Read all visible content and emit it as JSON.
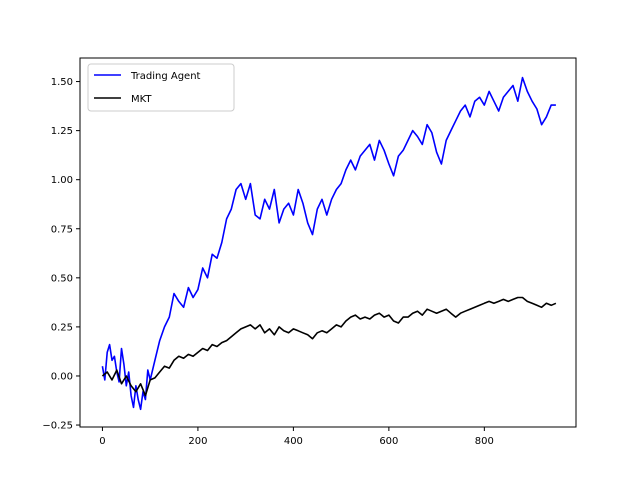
{
  "chart_data": {
    "type": "line",
    "title": "",
    "xlabel": "",
    "ylabel": "",
    "xlim": [
      -47,
      992
    ],
    "ylim": [
      -0.26,
      1.62
    ],
    "xticks": [
      0,
      200,
      400,
      600,
      800
    ],
    "yticks": [
      -0.25,
      0.0,
      0.25,
      0.5,
      0.75,
      1.0,
      1.25,
      1.5
    ],
    "xtick_labels": [
      "0",
      "200",
      "400",
      "600",
      "800"
    ],
    "ytick_labels": [
      "−0.25",
      "0.00",
      "0.25",
      "0.50",
      "0.75",
      "1.00",
      "1.25",
      "1.50"
    ],
    "grid": false,
    "legend_position": "top-left",
    "series": [
      {
        "name": "Trading Agent",
        "color": "#0000ff",
        "x": [
          0,
          5,
          10,
          15,
          20,
          25,
          30,
          35,
          40,
          45,
          50,
          55,
          60,
          65,
          70,
          75,
          80,
          85,
          90,
          95,
          100,
          110,
          120,
          130,
          140,
          150,
          160,
          170,
          180,
          190,
          200,
          210,
          220,
          230,
          240,
          250,
          260,
          270,
          280,
          290,
          300,
          310,
          320,
          330,
          340,
          350,
          360,
          370,
          380,
          390,
          400,
          410,
          420,
          430,
          440,
          450,
          460,
          470,
          480,
          490,
          500,
          510,
          520,
          530,
          540,
          550,
          560,
          570,
          580,
          590,
          600,
          610,
          620,
          630,
          640,
          650,
          660,
          670,
          680,
          690,
          700,
          710,
          720,
          730,
          740,
          750,
          760,
          770,
          780,
          790,
          800,
          810,
          820,
          830,
          840,
          850,
          860,
          870,
          880,
          890,
          900,
          910,
          920,
          930,
          940,
          950
        ],
        "y": [
          0.05,
          -0.02,
          0.12,
          0.16,
          0.08,
          0.1,
          0.02,
          -0.03,
          0.14,
          0.06,
          -0.05,
          0.02,
          -0.1,
          -0.16,
          -0.05,
          -0.12,
          -0.17,
          -0.08,
          -0.12,
          0.03,
          -0.02,
          0.08,
          0.18,
          0.25,
          0.3,
          0.42,
          0.38,
          0.35,
          0.45,
          0.4,
          0.44,
          0.55,
          0.5,
          0.62,
          0.6,
          0.68,
          0.8,
          0.85,
          0.95,
          0.98,
          0.9,
          0.98,
          0.82,
          0.8,
          0.9,
          0.85,
          0.95,
          0.78,
          0.85,
          0.88,
          0.82,
          0.95,
          0.88,
          0.78,
          0.72,
          0.85,
          0.9,
          0.82,
          0.9,
          0.95,
          0.98,
          1.05,
          1.1,
          1.05,
          1.12,
          1.15,
          1.18,
          1.1,
          1.2,
          1.15,
          1.08,
          1.02,
          1.12,
          1.15,
          1.2,
          1.25,
          1.22,
          1.18,
          1.28,
          1.24,
          1.14,
          1.08,
          1.2,
          1.25,
          1.3,
          1.35,
          1.38,
          1.32,
          1.4,
          1.42,
          1.38,
          1.45,
          1.4,
          1.35,
          1.42,
          1.45,
          1.48,
          1.4,
          1.52,
          1.45,
          1.4,
          1.36,
          1.28,
          1.32,
          1.38,
          1.38
        ]
      },
      {
        "name": "MKT",
        "color": "#000000",
        "x": [
          0,
          10,
          20,
          30,
          40,
          50,
          60,
          70,
          80,
          90,
          100,
          110,
          120,
          130,
          140,
          150,
          160,
          170,
          180,
          190,
          200,
          210,
          220,
          230,
          240,
          250,
          260,
          270,
          280,
          290,
          300,
          310,
          320,
          330,
          340,
          350,
          360,
          370,
          380,
          390,
          400,
          410,
          420,
          430,
          440,
          450,
          460,
          470,
          480,
          490,
          500,
          510,
          520,
          530,
          540,
          550,
          560,
          570,
          580,
          590,
          600,
          610,
          620,
          630,
          640,
          650,
          660,
          670,
          680,
          690,
          700,
          710,
          720,
          730,
          740,
          750,
          760,
          770,
          780,
          790,
          800,
          810,
          820,
          830,
          840,
          850,
          860,
          870,
          880,
          890,
          900,
          910,
          920,
          930,
          940,
          950
        ],
        "y": [
          0.0,
          0.02,
          -0.02,
          0.03,
          -0.04,
          0.0,
          -0.05,
          -0.08,
          -0.04,
          -0.1,
          -0.02,
          -0.01,
          0.02,
          0.05,
          0.04,
          0.08,
          0.1,
          0.09,
          0.11,
          0.1,
          0.12,
          0.14,
          0.13,
          0.16,
          0.15,
          0.17,
          0.18,
          0.2,
          0.22,
          0.24,
          0.25,
          0.26,
          0.24,
          0.26,
          0.22,
          0.24,
          0.21,
          0.25,
          0.23,
          0.22,
          0.24,
          0.23,
          0.22,
          0.21,
          0.19,
          0.22,
          0.23,
          0.22,
          0.24,
          0.26,
          0.25,
          0.28,
          0.3,
          0.31,
          0.29,
          0.3,
          0.29,
          0.31,
          0.32,
          0.3,
          0.31,
          0.28,
          0.27,
          0.3,
          0.3,
          0.32,
          0.33,
          0.31,
          0.34,
          0.33,
          0.32,
          0.33,
          0.34,
          0.32,
          0.3,
          0.32,
          0.33,
          0.34,
          0.35,
          0.36,
          0.37,
          0.38,
          0.37,
          0.38,
          0.39,
          0.38,
          0.39,
          0.4,
          0.4,
          0.38,
          0.37,
          0.36,
          0.35,
          0.37,
          0.36,
          0.37
        ]
      }
    ]
  }
}
